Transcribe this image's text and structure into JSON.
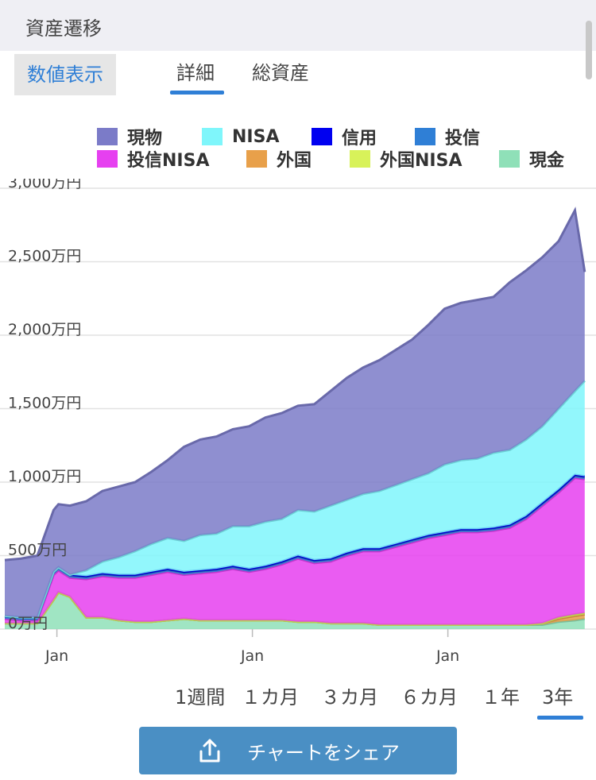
{
  "header": {
    "title": "資産遷移"
  },
  "tabs": {
    "numeric": "数値表示",
    "detail": "詳細",
    "total": "総資産"
  },
  "legend": [
    {
      "label": "現物",
      "color": "#7b7bc8"
    },
    {
      "label": "NISA",
      "color": "#7ff6fb"
    },
    {
      "label": "信用",
      "color": "#0000f0"
    },
    {
      "label": "投信",
      "color": "#2f7fd6"
    },
    {
      "label": "投信NISA",
      "color": "#e640f0"
    },
    {
      "label": "外国",
      "color": "#e8a04a"
    },
    {
      "label": "外国NISA",
      "color": "#d8f25a"
    },
    {
      "label": "現金",
      "color": "#8fe0b8"
    }
  ],
  "periods": [
    "1週間",
    "１カ月",
    "３カ月",
    "６カ月",
    "１年",
    "3年"
  ],
  "share_button": {
    "label": "チャートをシェア",
    "icon": "share-upload-icon"
  },
  "chart_data": {
    "type": "area",
    "stacked": true,
    "y_unit": "万円",
    "y_ticks": [
      "3,000万円",
      "2,500万円",
      "2,000万円",
      "1,500万円",
      "1,000万円",
      "500万円",
      "0万円"
    ],
    "y_tick_values": [
      3000,
      2500,
      2000,
      1500,
      1000,
      500,
      0
    ],
    "ylim": [
      0,
      3000
    ],
    "x_ticks": [
      "Jan",
      "Jan",
      "Jan"
    ],
    "x_tick_months": [
      3.2,
      15.2,
      27.2
    ],
    "xlim": [
      0,
      36
    ],
    "grid": true,
    "x": [
      0,
      1,
      2,
      3,
      3.3,
      4,
      5,
      6,
      7,
      8,
      9,
      10,
      11,
      12,
      13,
      14,
      15,
      16,
      17,
      18,
      19,
      20,
      21,
      22,
      23,
      24,
      25,
      26,
      27,
      28,
      29,
      30,
      31,
      32,
      33,
      34,
      35,
      35.6
    ],
    "series": [
      {
        "name": "現金",
        "values": [
          40,
          40,
          40,
          200,
          250,
          220,
          80,
          80,
          60,
          50,
          50,
          60,
          70,
          60,
          60,
          60,
          60,
          60,
          60,
          50,
          50,
          40,
          40,
          40,
          30,
          30,
          30,
          30,
          30,
          30,
          30,
          30,
          30,
          30,
          30,
          50,
          60,
          70
        ]
      },
      {
        "name": "外国",
        "values": [
          0,
          0,
          0,
          0,
          0,
          0,
          0,
          0,
          0,
          0,
          0,
          0,
          0,
          0,
          0,
          0,
          0,
          0,
          0,
          0,
          0,
          0,
          0,
          0,
          0,
          0,
          0,
          0,
          0,
          0,
          0,
          0,
          0,
          0,
          10,
          20,
          30,
          30
        ]
      },
      {
        "name": "外国NISA",
        "values": [
          0,
          0,
          0,
          0,
          0,
          0,
          0,
          0,
          0,
          0,
          0,
          0,
          0,
          0,
          0,
          0,
          0,
          0,
          0,
          0,
          0,
          0,
          0,
          0,
          0,
          0,
          0,
          0,
          0,
          0,
          0,
          0,
          0,
          0,
          0,
          10,
          10,
          10
        ]
      },
      {
        "name": "投信NISA",
        "values": [
          30,
          20,
          20,
          170,
          150,
          130,
          260,
          280,
          290,
          300,
          320,
          330,
          300,
          320,
          330,
          350,
          330,
          350,
          380,
          430,
          400,
          420,
          460,
          490,
          500,
          530,
          560,
          590,
          610,
          630,
          630,
          640,
          660,
          720,
          800,
          850,
          930,
          910
        ]
      },
      {
        "name": "投信",
        "values": [
          15,
          15,
          15,
          15,
          15,
          15,
          15,
          15,
          15,
          15,
          15,
          15,
          15,
          15,
          15,
          15,
          15,
          15,
          15,
          15,
          15,
          15,
          15,
          15,
          15,
          15,
          15,
          15,
          15,
          15,
          15,
          15,
          15,
          15,
          15,
          15,
          15,
          15
        ]
      },
      {
        "name": "信用",
        "values": [
          5,
          5,
          5,
          5,
          5,
          5,
          5,
          5,
          5,
          5,
          5,
          5,
          5,
          5,
          5,
          5,
          5,
          5,
          5,
          5,
          5,
          5,
          5,
          5,
          5,
          5,
          5,
          5,
          5,
          5,
          5,
          5,
          5,
          5,
          5,
          5,
          5,
          5
        ]
      },
      {
        "name": "NISA",
        "values": [
          0,
          0,
          0,
          0,
          0,
          0,
          40,
          80,
          120,
          160,
          190,
          210,
          210,
          240,
          240,
          270,
          290,
          300,
          290,
          310,
          330,
          360,
          360,
          370,
          390,
          400,
          410,
          420,
          460,
          470,
          480,
          510,
          510,
          520,
          520,
          550,
          570,
          650
        ]
      },
      {
        "name": "現物",
        "values": [
          380,
          400,
          420,
          420,
          430,
          470,
          470,
          480,
          480,
          470,
          490,
          530,
          640,
          650,
          660,
          660,
          680,
          710,
          720,
          710,
          730,
          780,
          830,
          860,
          890,
          920,
          950,
          1010,
          1060,
          1070,
          1080,
          1060,
          1140,
          1150,
          1150,
          1140,
          1230,
          740
        ]
      }
    ]
  }
}
